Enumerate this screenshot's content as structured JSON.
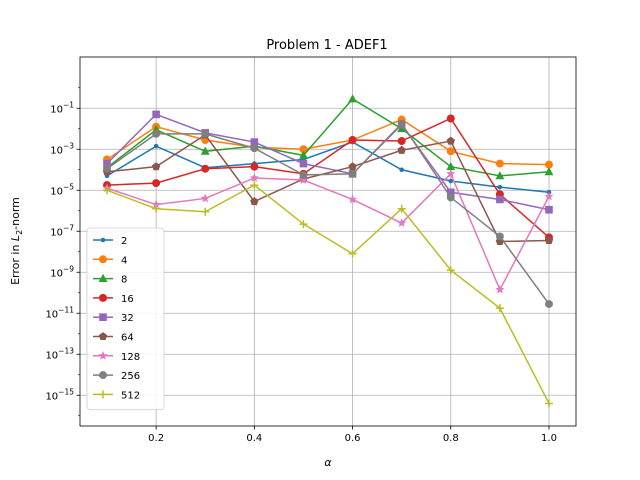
{
  "chart_data": {
    "type": "line",
    "title": "Problem 1 - ADEF1",
    "xlabel": "α",
    "ylabel_prefix": "Error in ",
    "ylabel_math": "L",
    "ylabel_sub": "2",
    "ylabel_suffix": "-norm",
    "x": [
      0.1,
      0.2,
      0.3,
      0.4,
      0.5,
      0.6,
      0.7,
      0.8,
      0.9,
      1.0
    ],
    "xlim": [
      0.045,
      1.055
    ],
    "ylim_log10": [
      -16.5,
      1.5
    ],
    "y_scale": "log",
    "grid": true,
    "legend_position": "lower-left",
    "x_ticks": [
      "0.2",
      "0.4",
      "0.6",
      "0.8",
      "1.0"
    ],
    "x_tick_values": [
      0.2,
      0.4,
      0.6,
      0.8,
      1.0
    ],
    "y_ticks": [
      {
        "exp": -1,
        "base": "10",
        "sup": "−1"
      },
      {
        "exp": -3,
        "base": "10",
        "sup": "−3"
      },
      {
        "exp": -5,
        "base": "10",
        "sup": "−5"
      },
      {
        "exp": -7,
        "base": "10",
        "sup": "−7"
      },
      {
        "exp": -9,
        "base": "10",
        "sup": "−9"
      },
      {
        "exp": -11,
        "base": "10",
        "sup": "−11"
      },
      {
        "exp": -13,
        "base": "10",
        "sup": "−13"
      },
      {
        "exp": -15,
        "base": "10",
        "sup": "−15"
      }
    ],
    "series": [
      {
        "name": "2",
        "color": "#1f77b4",
        "marker": "dot",
        "log10_values": [
          -4.3,
          -2.85,
          -3.9,
          -3.7,
          -3.5,
          -2.65,
          -4.0,
          -4.55,
          -4.85,
          -5.1
        ]
      },
      {
        "name": "4",
        "color": "#ff7f0e",
        "marker": "circle",
        "log10_values": [
          -3.5,
          -1.9,
          -2.55,
          -2.9,
          -3.0,
          -2.55,
          -1.55,
          -3.1,
          -3.7,
          -3.75
        ]
      },
      {
        "name": "8",
        "color": "#2ca02c",
        "marker": "triangle",
        "log10_values": [
          -3.9,
          -2.05,
          -3.1,
          -2.85,
          -3.3,
          -0.55,
          -2.0,
          -3.85,
          -4.3,
          -4.1
        ]
      },
      {
        "name": "16",
        "color": "#d62728",
        "marker": "circle",
        "log10_values": [
          -4.75,
          -4.65,
          -3.95,
          -3.85,
          -4.2,
          -2.55,
          -2.6,
          -1.5,
          -5.2,
          -7.3
        ]
      },
      {
        "name": "32",
        "color": "#9467bd",
        "marker": "square",
        "log10_values": [
          -3.7,
          -1.3,
          -2.2,
          -2.65,
          -3.7,
          -4.2,
          -1.8,
          -5.1,
          -5.45,
          -5.95
        ]
      },
      {
        "name": "64",
        "color": "#8c564b",
        "marker": "pentagon",
        "log10_values": [
          -4.1,
          -3.85,
          -2.3,
          -5.55,
          -4.45,
          -3.85,
          -3.05,
          -2.6,
          -7.5,
          -7.45
        ]
      },
      {
        "name": "128",
        "color": "#e377c2",
        "marker": "star",
        "log10_values": [
          -4.9,
          -5.7,
          -5.4,
          -4.4,
          -4.5,
          -5.45,
          -6.6,
          -4.2,
          -9.85,
          -5.3
        ]
      },
      {
        "name": "256",
        "color": "#7f7f7f",
        "marker": "octagon",
        "log10_values": [
          -3.95,
          -2.25,
          -2.25,
          -2.95,
          -4.25,
          -4.2,
          -1.75,
          -5.35,
          -7.25,
          -10.55
        ]
      },
      {
        "name": "512",
        "color": "#bcbd22",
        "marker": "plus",
        "log10_values": [
          -5.0,
          -5.9,
          -6.05,
          -4.75,
          -6.65,
          -8.1,
          -5.9,
          -8.9,
          -10.75,
          -15.4
        ]
      }
    ]
  }
}
